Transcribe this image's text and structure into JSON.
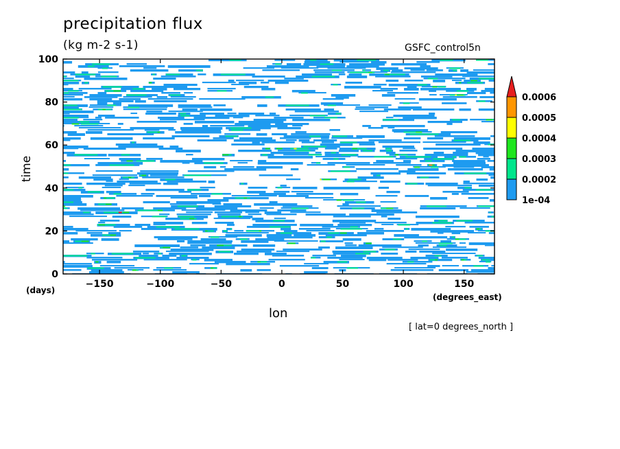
{
  "header": {
    "title": "precipitation flux",
    "units": "(kg m-2 s-1)",
    "run": "GSFC_control5n",
    "note": "[ lat=0 degrees_north ]"
  },
  "colors": {
    "levels": [
      "#1e9bf0",
      "#00e68c",
      "#1ee61e",
      "#ffff00",
      "#ff9600",
      "#e61e1e"
    ]
  },
  "chart_data": {
    "type": "heatmap",
    "title": "precipitation flux",
    "subtitle": "(kg m-2 s-1)",
    "xlabel": "lon",
    "xunit": "(degrees_east)",
    "ylabel": "time",
    "yunit": "(days)",
    "xlim": [
      -180,
      175
    ],
    "ylim": [
      0,
      100
    ],
    "xticks": [
      -150,
      -100,
      -50,
      0,
      50,
      100,
      150
    ],
    "xtick_labels": [
      "−150",
      "−100",
      "−50",
      "0",
      "50",
      "100",
      "150"
    ],
    "yticks": [
      0,
      20,
      40,
      60,
      80,
      100
    ],
    "ytick_labels": [
      "0",
      "20",
      "40",
      "60",
      "80",
      "100"
    ],
    "colorbar": {
      "labels": [
        "1e-04",
        "0.0002",
        "0.0003",
        "0.0004",
        "0.0005",
        "0.0006"
      ],
      "colors": [
        "#1e9bf0",
        "#00e68c",
        "#1ee61e",
        "#ffff00",
        "#ff9600",
        "#e61e1e"
      ],
      "extend": "max"
    },
    "grid": false
  }
}
